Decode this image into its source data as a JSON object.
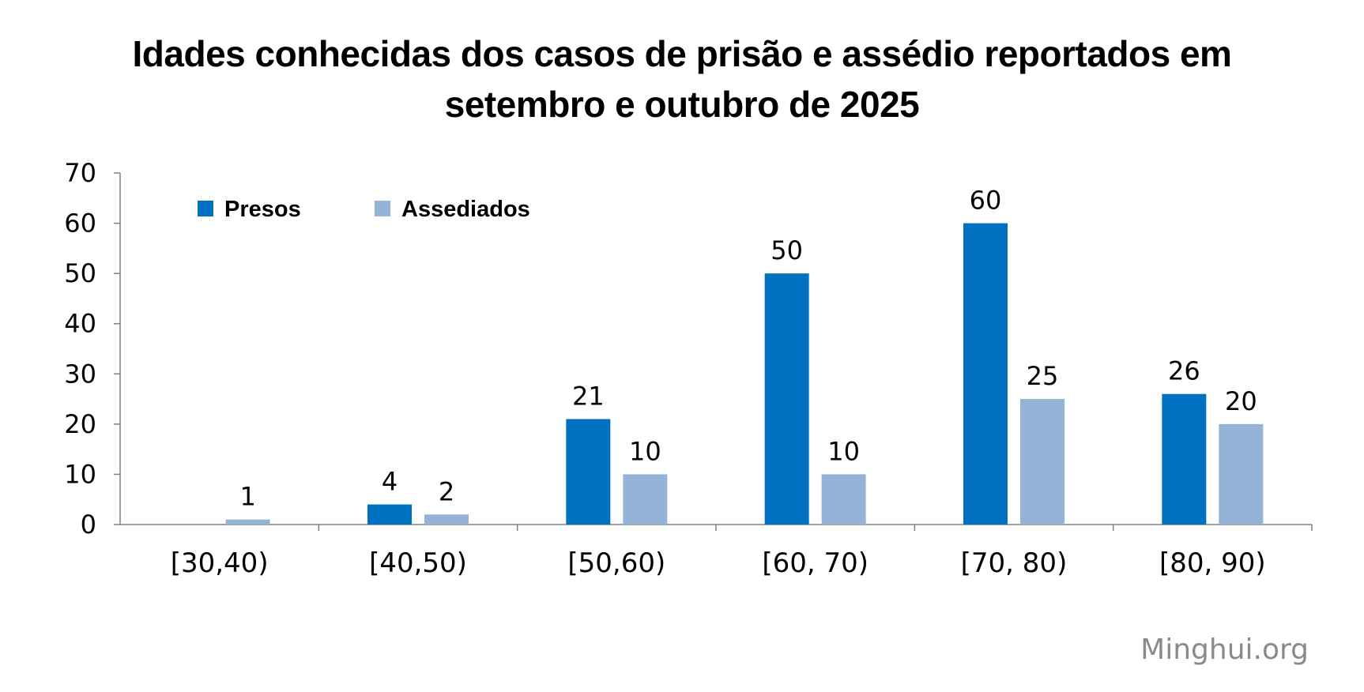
{
  "chart_data": {
    "type": "bar",
    "title_line1": "Idades conhecidas dos casos de prisão e assédio reportados em",
    "title_line2": "setembro e outubro de 2025",
    "categories": [
      "[30,40)",
      "[40,50)",
      "[50,60)",
      "[60, 70)",
      "[70, 80)",
      "[80, 90)"
    ],
    "series": [
      {
        "name": "Presos",
        "color": "#0070C0",
        "values": [
          0,
          4,
          21,
          50,
          60,
          26
        ],
        "labels": [
          "",
          "4",
          "21",
          "50",
          "60",
          "26"
        ]
      },
      {
        "name": "Assediados",
        "color": "#95B3D7",
        "values": [
          1,
          2,
          10,
          10,
          25,
          20
        ],
        "labels": [
          "1",
          "2",
          "10",
          "10",
          "25",
          "20"
        ]
      }
    ],
    "ylim": [
      0,
      70
    ],
    "yticks": [
      0,
      10,
      20,
      30,
      40,
      50,
      60,
      70
    ],
    "legend_position": "top-left",
    "grid": false
  },
  "watermark": "Minghui.org"
}
